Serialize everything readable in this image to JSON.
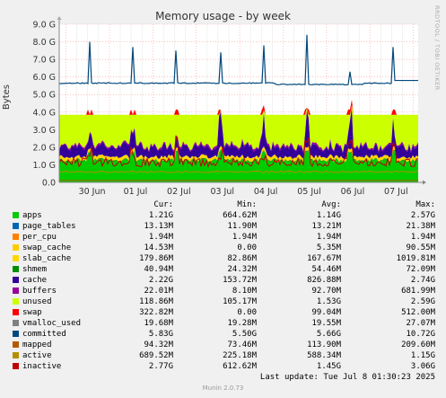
{
  "title": "Memory usage - by week",
  "ylabel": "Bytes",
  "rrd_label": "RRDTOOL / TOBI OETIKER",
  "columns": [
    "Cur:",
    "Min:",
    "Avg:",
    "Max:"
  ],
  "last_update": "Last update: Tue Jul  8 01:30:23 2025",
  "munin_version": "Munin 2.0.73",
  "chart_data": {
    "type": "area",
    "title": "Memory usage - by week",
    "ylabel": "Bytes",
    "ylim": [
      0,
      9.0
    ],
    "yticks": [
      "0.0",
      "1.0 G",
      "2.0 G",
      "3.0 G",
      "4.0 G",
      "5.0 G",
      "6.0 G",
      "7.0 G",
      "8.0 G",
      "9.0 G"
    ],
    "xticks": [
      "30 Jun",
      "01 Jul",
      "02 Jul",
      "03 Jul",
      "04 Jul",
      "05 Jul",
      "06 Jul",
      "07 Jul"
    ],
    "grid": true,
    "committed_spikes": [
      8.0,
      7.7,
      7.5,
      7.4,
      7.8,
      8.4,
      6.3,
      7.7
    ],
    "series": [
      {
        "name": "apps",
        "color": "#00cc00",
        "cur": "1.21G",
        "min": "664.62M",
        "avg": "1.14G",
        "max": "2.57G"
      },
      {
        "name": "page_tables",
        "color": "#0066b3",
        "cur": "13.13M",
        "min": "11.90M",
        "avg": "13.21M",
        "max": "21.38M"
      },
      {
        "name": "per_cpu",
        "color": "#ff8000",
        "cur": "1.94M",
        "min": "1.94M",
        "avg": "1.94M",
        "max": "1.94M"
      },
      {
        "name": "swap_cache",
        "color": "#ffcc00",
        "cur": "14.53M",
        "min": "0.00",
        "avg": "5.35M",
        "max": "90.55M"
      },
      {
        "name": "slab_cache",
        "color": "#ffd700",
        "cur": "179.86M",
        "min": "82.86M",
        "avg": "167.67M",
        "max": "1019.81M"
      },
      {
        "name": "shmem",
        "color": "#008f00",
        "cur": "40.94M",
        "min": "24.32M",
        "avg": "54.46M",
        "max": "72.09M"
      },
      {
        "name": "cache",
        "color": "#330099",
        "cur": "2.22G",
        "min": "153.72M",
        "avg": "826.88M",
        "max": "2.74G"
      },
      {
        "name": "buffers",
        "color": "#990099",
        "cur": "22.01M",
        "min": "8.10M",
        "avg": "92.70M",
        "max": "681.99M"
      },
      {
        "name": "unused",
        "color": "#ccff00",
        "cur": "118.86M",
        "min": "105.17M",
        "avg": "1.53G",
        "max": "2.59G"
      },
      {
        "name": "swap",
        "color": "#ff0000",
        "cur": "322.82M",
        "min": "0.00",
        "avg": "99.04M",
        "max": "512.00M"
      },
      {
        "name": "vmalloc_used",
        "color": "#808080",
        "cur": "19.68M",
        "min": "19.28M",
        "avg": "19.55M",
        "max": "27.07M"
      },
      {
        "name": "committed",
        "color": "#00487d",
        "cur": "5.83G",
        "min": "5.50G",
        "avg": "5.66G",
        "max": "10.72G"
      },
      {
        "name": "mapped",
        "color": "#b35a00",
        "cur": "94.32M",
        "min": "73.46M",
        "avg": "113.90M",
        "max": "209.60M"
      },
      {
        "name": "active",
        "color": "#b38f00",
        "cur": "689.52M",
        "min": "225.18M",
        "avg": "588.34M",
        "max": "1.15G"
      },
      {
        "name": "inactive",
        "color": "#c00000",
        "cur": "2.77G",
        "min": "612.62M",
        "avg": "1.45G",
        "max": "3.06G"
      }
    ]
  }
}
